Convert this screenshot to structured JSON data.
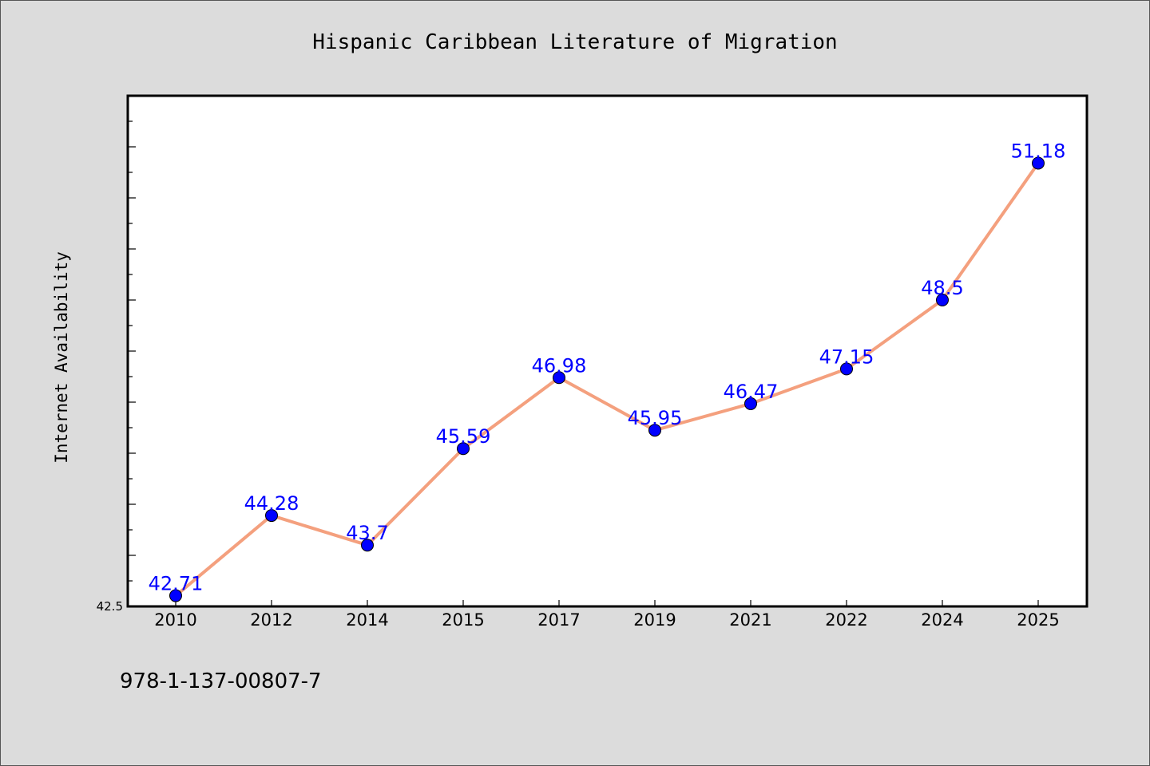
{
  "chart_data": {
    "type": "line",
    "title": "Hispanic Caribbean Literature of Migration",
    "xlabel": "",
    "ylabel": "Internet Availability",
    "categories": [
      "2010",
      "2012",
      "2014",
      "2015",
      "2017",
      "2019",
      "2021",
      "2022",
      "2024",
      "2025"
    ],
    "series": [
      {
        "values": [
          42.71,
          44.28,
          43.7,
          45.59,
          46.98,
          45.95,
          46.47,
          47.15,
          48.5,
          51.18
        ]
      }
    ],
    "data_labels": [
      "42.71",
      "44.28",
      "43.7",
      "45.59",
      "46.98",
      "45.95",
      "46.47",
      "47.15",
      "48.5",
      "51.18"
    ],
    "ylim": [
      42.5,
      52.5
    ],
    "ytick_labels": [
      {
        "value": 42.5,
        "label": "42.5"
      }
    ],
    "grid": false,
    "legend": "none",
    "colors": {
      "line": "#f4a07e",
      "marker": "#0000ff",
      "data_label": "#0000ff",
      "plot_background": "#ffffff",
      "figure_background": "#dcdcdc"
    }
  },
  "footnote": "978-1-137-00807-7"
}
